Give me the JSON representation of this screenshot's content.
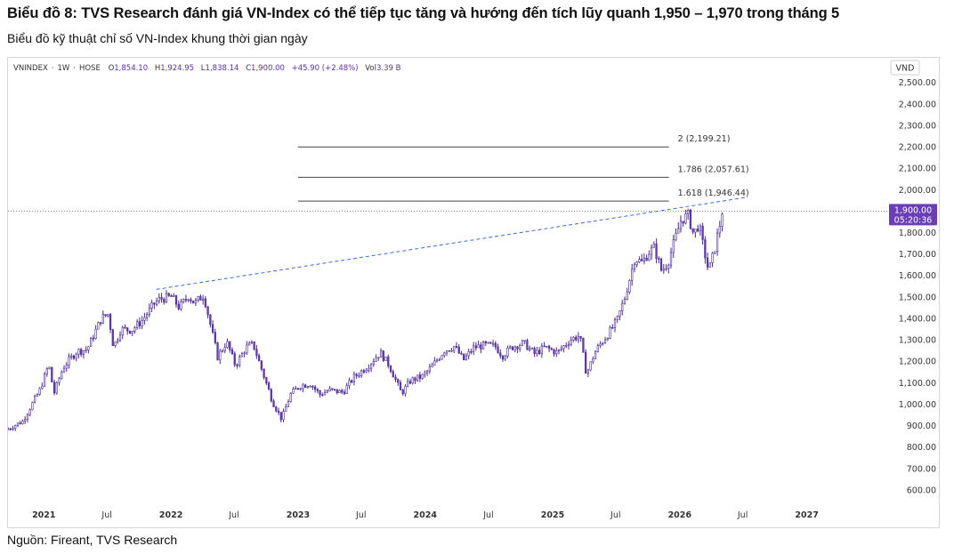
{
  "title": "Biểu đồ 8: TVS Research đánh giá VN-Index có thể tiếp tục tăng và hướng đến tích lũy quanh 1,950 – 1,970 trong tháng 5",
  "subtitle": "Biểu đồ kỹ thuật chỉ số VN-Index khung thời gian ngày",
  "source": "Nguồn: Fireant, TVS Research",
  "colors": {
    "up": "#ffffff",
    "down": "#6a3fb5",
    "candle_stroke": "#4a2a8f",
    "trendline": "#3a6fd8",
    "price_tag": "#6a3fb5",
    "fib_line": "#444444",
    "last_price_line": "#8a8a8a"
  },
  "chart_data": {
    "type": "candlestick",
    "symbol": "VNINDEX",
    "interval": "1W",
    "exchange": "HOSE",
    "ohlc_header": {
      "o_label": "O",
      "o": "1,854.10",
      "h_label": "H",
      "h": "1,924.95",
      "l_label": "L",
      "l": "1,838.14",
      "c_label": "C",
      "c": "1,900.00",
      "change": "+45.90 (+2.48%)",
      "vol_label": "Vol",
      "vol": "3.39 B"
    },
    "currency": "VND",
    "last_price": "1,900.00",
    "countdown": "05:20:36",
    "ylim": [
      550,
      2540
    ],
    "y_ticks": [
      600,
      700,
      800,
      900,
      1000,
      1100,
      1200,
      1300,
      1400,
      1500,
      1600,
      1700,
      1800,
      1900,
      2000,
      2100,
      2200,
      2300,
      2400,
      2500
    ],
    "y_tick_labels": [
      "600.00",
      "700.00",
      "800.00",
      "900.00",
      "1,000.00",
      "1,100.00",
      "1,200.00",
      "1,300.00",
      "1,400.00",
      "1,500.00",
      "1,600.00",
      "1,700.00",
      "1,800.00",
      "1,900.00",
      "2,000.00",
      "2,100.00",
      "2,200.00",
      "2,300.00",
      "2,400.00",
      "2,500.00"
    ],
    "xlim": [
      "2020-09-20",
      "2027-08-20"
    ],
    "x_ticks": [
      {
        "date": "2021-01-01",
        "label": "2021",
        "bold": true
      },
      {
        "date": "2021-07-01",
        "label": "Jul",
        "bold": false
      },
      {
        "date": "2022-01-01",
        "label": "2022",
        "bold": true
      },
      {
        "date": "2022-07-01",
        "label": "Jul",
        "bold": false
      },
      {
        "date": "2023-01-01",
        "label": "2023",
        "bold": true
      },
      {
        "date": "2023-07-01",
        "label": "Jul",
        "bold": false
      },
      {
        "date": "2024-01-01",
        "label": "2024",
        "bold": true
      },
      {
        "date": "2024-07-01",
        "label": "Jul",
        "bold": false
      },
      {
        "date": "2025-01-01",
        "label": "2025",
        "bold": true
      },
      {
        "date": "2025-07-01",
        "label": "Jul",
        "bold": false
      },
      {
        "date": "2026-01-01",
        "label": "2026",
        "bold": true
      },
      {
        "date": "2026-07-01",
        "label": "Jul",
        "bold": false
      },
      {
        "date": "2027-01-01",
        "label": "2027",
        "bold": true
      }
    ],
    "fib_levels": [
      {
        "label": "2 (2,199.21)",
        "value": 2199.21,
        "from": "2023-01-01",
        "to": "2025-12-01"
      },
      {
        "label": "1.786 (2,057.61)",
        "value": 2057.61,
        "from": "2023-01-01",
        "to": "2025-12-01"
      },
      {
        "label": "1.618 (1,946.44)",
        "value": 1946.44,
        "from": "2023-01-01",
        "to": "2025-12-01"
      }
    ],
    "trendline": {
      "from": {
        "date": "2021-11-20",
        "value": 1535
      },
      "to": {
        "date": "2026-07-15",
        "value": 1965
      }
    },
    "series_anchors": [
      [
        "2020-09-20",
        885
      ],
      [
        "2020-11-01",
        920
      ],
      [
        "2020-12-20",
        1065
      ],
      [
        "2021-01-15",
        1185
      ],
      [
        "2021-01-30",
        1050
      ],
      [
        "2021-02-25",
        1170
      ],
      [
        "2021-04-05",
        1245
      ],
      [
        "2021-05-05",
        1255
      ],
      [
        "2021-06-15",
        1400
      ],
      [
        "2021-07-05",
        1420
      ],
      [
        "2021-07-20",
        1265
      ],
      [
        "2021-08-10",
        1350
      ],
      [
        "2021-09-10",
        1345
      ],
      [
        "2021-10-10",
        1390
      ],
      [
        "2021-11-15",
        1470
      ],
      [
        "2021-11-30",
        1490
      ],
      [
        "2022-01-03",
        1500
      ],
      [
        "2022-01-25",
        1450
      ],
      [
        "2022-02-20",
        1505
      ],
      [
        "2022-03-10",
        1470
      ],
      [
        "2022-04-05",
        1510
      ],
      [
        "2022-04-20",
        1400
      ],
      [
        "2022-05-15",
        1220
      ],
      [
        "2022-06-10",
        1290
      ],
      [
        "2022-07-05",
        1180
      ],
      [
        "2022-08-05",
        1265
      ],
      [
        "2022-08-25",
        1280
      ],
      [
        "2022-09-25",
        1130
      ],
      [
        "2022-10-20",
        1010
      ],
      [
        "2022-11-15",
        930
      ],
      [
        "2022-12-10",
        1045
      ],
      [
        "2023-01-05",
        1085
      ],
      [
        "2023-02-05",
        1095
      ],
      [
        "2023-03-05",
        1045
      ],
      [
        "2023-03-30",
        1065
      ],
      [
        "2023-05-10",
        1055
      ],
      [
        "2023-06-10",
        1125
      ],
      [
        "2023-07-15",
        1170
      ],
      [
        "2023-08-25",
        1240
      ],
      [
        "2023-09-20",
        1180
      ],
      [
        "2023-10-25",
        1050
      ],
      [
        "2023-11-20",
        1110
      ],
      [
        "2023-12-25",
        1130
      ],
      [
        "2024-01-20",
        1175
      ],
      [
        "2024-02-25",
        1250
      ],
      [
        "2024-03-25",
        1270
      ],
      [
        "2024-04-20",
        1205
      ],
      [
        "2024-05-20",
        1265
      ],
      [
        "2024-06-20",
        1275
      ],
      [
        "2024-07-20",
        1270
      ],
      [
        "2024-08-10",
        1225
      ],
      [
        "2024-09-05",
        1265
      ],
      [
        "2024-10-10",
        1285
      ],
      [
        "2024-11-10",
        1235
      ],
      [
        "2024-12-10",
        1265
      ],
      [
        "2025-01-15",
        1240
      ],
      [
        "2025-02-20",
        1300
      ],
      [
        "2025-03-20",
        1320
      ],
      [
        "2025-04-08",
        1140
      ],
      [
        "2025-05-05",
        1250
      ],
      [
        "2025-06-15",
        1340
      ],
      [
        "2025-07-05",
        1390
      ],
      [
        "2025-07-28",
        1500
      ],
      [
        "2025-08-25",
        1680
      ],
      [
        "2025-09-15",
        1660
      ],
      [
        "2025-10-05",
        1710
      ],
      [
        "2025-10-20",
        1730
      ],
      [
        "2025-11-10",
        1620
      ],
      [
        "2025-11-28",
        1660
      ],
      [
        "2025-12-15",
        1750
      ],
      [
        "2026-01-05",
        1860
      ],
      [
        "2026-01-25",
        1880
      ],
      [
        "2026-02-10",
        1790
      ],
      [
        "2026-02-25",
        1840
      ],
      [
        "2026-03-10",
        1730
      ],
      [
        "2026-03-25",
        1620
      ],
      [
        "2026-04-08",
        1700
      ],
      [
        "2026-04-25",
        1830
      ],
      [
        "2026-05-05",
        1900
      ]
    ]
  }
}
